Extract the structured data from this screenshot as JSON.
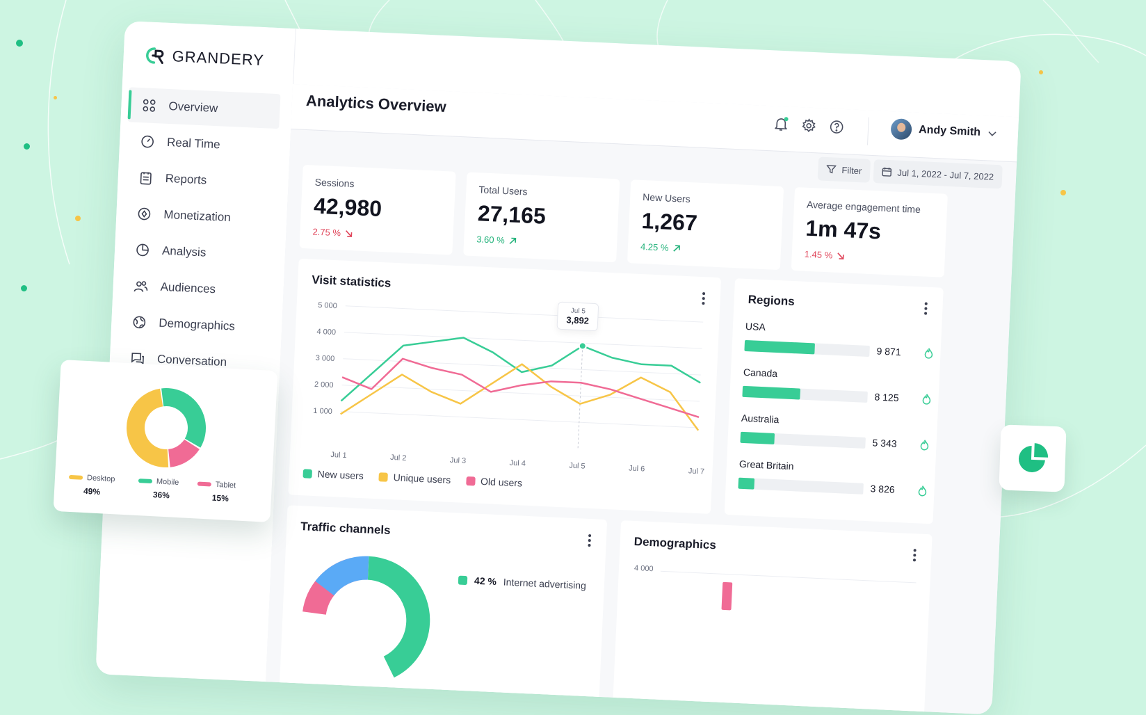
{
  "brand": {
    "name": "GRANDERY"
  },
  "sidebar": {
    "items": [
      {
        "label": "Overview",
        "icon": "grid-icon",
        "active": true
      },
      {
        "label": "Real Time",
        "icon": "gauge-icon"
      },
      {
        "label": "Reports",
        "icon": "clipboard-icon"
      },
      {
        "label": "Monetization",
        "icon": "coin-icon"
      },
      {
        "label": "Analysis",
        "icon": "pie-icon"
      },
      {
        "label": "Audiences",
        "icon": "users-icon"
      },
      {
        "label": "Demographics",
        "icon": "globe-icon"
      },
      {
        "label": "Conversation",
        "icon": "chat-icon"
      }
    ]
  },
  "header": {
    "title": "Analytics Overview",
    "user": {
      "name": "Andy Smith"
    },
    "filter_label": "Filter",
    "date_range": "Jul 1, 2022 - Jul 7, 2022"
  },
  "stats": [
    {
      "label": "Sessions",
      "value": "42,980",
      "delta": "2.75 %",
      "trend": "down"
    },
    {
      "label": "Total Users",
      "value": "27,165",
      "delta": "3.60 %",
      "trend": "up"
    },
    {
      "label": "New Users",
      "value": "1,267",
      "delta": "4.25 %",
      "trend": "up"
    },
    {
      "label": "Average engagement time",
      "value": "1m 47s",
      "delta": "1.45 %",
      "trend": "down"
    }
  ],
  "visit_statistics": {
    "title": "Visit statistics",
    "tooltip": {
      "date": "Jul 5",
      "value": "3,892"
    },
    "legend": [
      "New users",
      "Unique users",
      "Old users"
    ]
  },
  "chart_data": {
    "type": "line",
    "title": "Visit statistics",
    "x": [
      "Jul 1",
      "",
      "Jul 2",
      "",
      "Jul 3",
      "",
      "Jul 4",
      "",
      "Jul 5",
      "",
      "Jul 6",
      "",
      "Jul 7"
    ],
    "x_ticks": [
      "Jul 1",
      "Jul 2",
      "Jul 3",
      "Jul 4",
      "Jul 5",
      "Jul 6",
      "Jul 7"
    ],
    "y_ticks": [
      "1 000",
      "2 000",
      "3 000",
      "4 000",
      "5 000"
    ],
    "ylim": [
      0,
      5000
    ],
    "grid": true,
    "legend_position": "bottom-left",
    "colors": [
      "#38cd96",
      "#f7c547",
      "#f06b95"
    ],
    "series": [
      {
        "name": "New users",
        "values": [
          1400,
          2500,
          3600,
          3800,
          4000,
          3500,
          2800,
          3100,
          3892,
          3500,
          3300,
          3300,
          2700
        ]
      },
      {
        "name": "Unique users",
        "values": [
          900,
          1700,
          2500,
          1900,
          1500,
          2300,
          3100,
          2300,
          1700,
          2100,
          2800,
          2300,
          900
        ]
      },
      {
        "name": "Old users",
        "values": [
          2300,
          1900,
          3100,
          2800,
          2600,
          2000,
          2300,
          2500,
          2500,
          2300,
          2000,
          1700,
          1400
        ]
      }
    ]
  },
  "regions": {
    "title": "Regions",
    "items": [
      {
        "name": "USA",
        "value": "9 871",
        "share": 0.56
      },
      {
        "name": "Canada",
        "value": "8 125",
        "share": 0.46
      },
      {
        "name": "Australia",
        "value": "5 343",
        "share": 0.27
      },
      {
        "name": "Great Britain",
        "value": "3 826",
        "share": 0.13
      }
    ]
  },
  "traffic": {
    "title": "Traffic channels",
    "legend_pct": "42 %",
    "legend_label": "Internet advertising"
  },
  "demographics": {
    "title": "Demographics",
    "y_tick": "4 000"
  },
  "devices": {
    "items": [
      {
        "label": "Desktop",
        "pct": "49%",
        "share": 49,
        "color": "#f7c547"
      },
      {
        "label": "Mobile",
        "pct": "36%",
        "share": 36,
        "color": "#38cd96"
      },
      {
        "label": "Tablet",
        "pct": "15%",
        "share": 15,
        "color": "#f06b95"
      }
    ]
  },
  "colors": {
    "accent": "#38cd96",
    "yellow": "#f7c547",
    "pink": "#f06b95",
    "blue": "#5aaaf6",
    "red": "#e0455a"
  }
}
